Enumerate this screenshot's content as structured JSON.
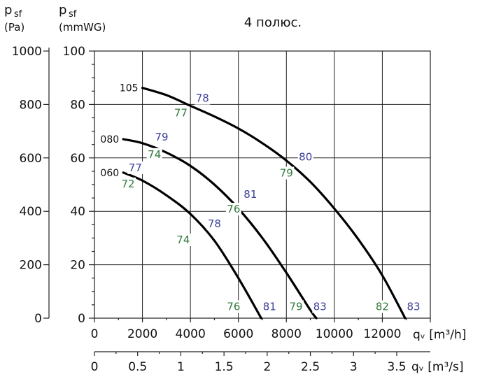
{
  "chart_data": {
    "type": "line",
    "title": "4 полюс.",
    "y_left_label": {
      "main": "p",
      "sub": "sf",
      "unit": "(Pa)"
    },
    "y_right_label": {
      "main": "p",
      "sub": "sf",
      "unit": "(mmWG)"
    },
    "x1_label": "qᵥ [m³/h]",
    "x2_label": "qᵥ [m³/s]",
    "x1_ticks": [
      "0",
      "2000",
      "4000",
      "6000",
      "8000",
      "10000",
      "12000"
    ],
    "x2_ticks": [
      "0",
      "0.5",
      "1",
      "1.5",
      "2",
      "2.5",
      "3",
      "3.5"
    ],
    "y_pa_ticks": [
      "0",
      "200",
      "400",
      "600",
      "800",
      "1000"
    ],
    "y_mm_ticks": [
      "0",
      "20",
      "40",
      "60",
      "80",
      "100"
    ],
    "xlim": [
      0,
      14000
    ],
    "ylim": [
      0,
      1000
    ],
    "grid": true,
    "series": [
      {
        "name": "060",
        "points": [
          [
            1200,
            545
          ],
          [
            2000,
            515
          ],
          [
            3000,
            460
          ],
          [
            4000,
            390
          ],
          [
            5000,
            290
          ],
          [
            6000,
            150
          ],
          [
            6950,
            0
          ]
        ]
      },
      {
        "name": "080",
        "points": [
          [
            1200,
            670
          ],
          [
            2000,
            655
          ],
          [
            3000,
            620
          ],
          [
            4000,
            570
          ],
          [
            5000,
            500
          ],
          [
            6000,
            410
          ],
          [
            7000,
            300
          ],
          [
            8000,
            170
          ],
          [
            9000,
            30
          ],
          [
            9250,
            0
          ]
        ]
      },
      {
        "name": "105",
        "points": [
          [
            2000,
            862
          ],
          [
            3000,
            835
          ],
          [
            4000,
            795
          ],
          [
            5000,
            755
          ],
          [
            6000,
            710
          ],
          [
            7000,
            655
          ],
          [
            8000,
            590
          ],
          [
            9000,
            510
          ],
          [
            10000,
            410
          ],
          [
            11000,
            295
          ],
          [
            12000,
            160
          ],
          [
            12950,
            0
          ]
        ]
      }
    ],
    "annotations": {
      "blue": [
        {
          "text": "78",
          "x": 4500,
          "y": 810
        },
        {
          "text": "79",
          "x": 2800,
          "y": 665
        },
        {
          "text": "77",
          "x": 1700,
          "y": 550
        },
        {
          "text": "80",
          "x": 8800,
          "y": 590
        },
        {
          "text": "81",
          "x": 6500,
          "y": 450
        },
        {
          "text": "78",
          "x": 5000,
          "y": 340
        },
        {
          "text": "81",
          "x": 7300,
          "y": 30
        },
        {
          "text": "83",
          "x": 9400,
          "y": 30
        },
        {
          "text": "83",
          "x": 13300,
          "y": 30
        }
      ],
      "green": [
        {
          "text": "77",
          "x": 3600,
          "y": 755
        },
        {
          "text": "74",
          "x": 2500,
          "y": 600
        },
        {
          "text": "72",
          "x": 1400,
          "y": 490
        },
        {
          "text": "79",
          "x": 8000,
          "y": 530
        },
        {
          "text": "76",
          "x": 5800,
          "y": 395
        },
        {
          "text": "74",
          "x": 3700,
          "y": 280
        },
        {
          "text": "76",
          "x": 5800,
          "y": 30
        },
        {
          "text": "79",
          "x": 8400,
          "y": 30
        },
        {
          "text": "82",
          "x": 12000,
          "y": 30
        }
      ]
    }
  }
}
